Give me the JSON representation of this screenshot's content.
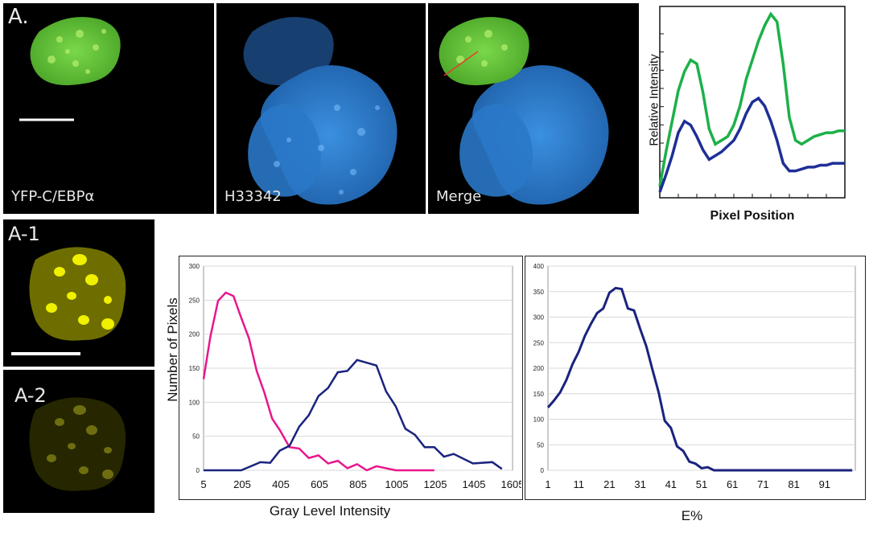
{
  "panel_a": {
    "label": "A.",
    "images": [
      {
        "caption": "YFP-C/EBPα",
        "channel": "YFP"
      },
      {
        "caption": "H33342",
        "channel": "Hoechst"
      },
      {
        "caption": "Merge",
        "channel": "Merge"
      }
    ]
  },
  "panel_a1": {
    "label": "A-1"
  },
  "panel_a2": {
    "label": "A-2"
  },
  "colors": {
    "yfp_green": "#6fd63a",
    "hoechst_blue": "#2f7fd0",
    "yellow": "#e6e600",
    "line_green": "#1db04a",
    "line_blue": "#1e2f96",
    "magenta": "#e8168c",
    "navy": "#1a237e"
  },
  "chart_data": [
    {
      "type": "line",
      "xlabel": "Pixel Position",
      "ylabel": "Relative Intensity",
      "x": [
        0,
        1,
        2,
        3,
        4,
        5,
        6,
        7,
        8,
        9,
        10,
        11,
        12,
        13,
        14,
        15,
        16,
        17,
        18,
        19,
        20,
        21,
        22,
        23,
        24,
        25,
        26,
        27,
        28,
        29,
        30
      ],
      "series": [
        {
          "name": "green",
          "values": [
            0.06,
            0.24,
            0.4,
            0.56,
            0.66,
            0.72,
            0.7,
            0.55,
            0.36,
            0.28,
            0.3,
            0.32,
            0.38,
            0.48,
            0.62,
            0.72,
            0.82,
            0.9,
            0.96,
            0.92,
            0.7,
            0.42,
            0.3,
            0.28,
            0.3,
            0.32,
            0.33,
            0.34,
            0.34,
            0.35,
            0.35
          ]
        },
        {
          "name": "blue",
          "values": [
            0.03,
            0.12,
            0.22,
            0.34,
            0.4,
            0.38,
            0.32,
            0.25,
            0.2,
            0.22,
            0.24,
            0.27,
            0.3,
            0.36,
            0.44,
            0.5,
            0.52,
            0.48,
            0.4,
            0.3,
            0.18,
            0.14,
            0.14,
            0.15,
            0.16,
            0.16,
            0.17,
            0.17,
            0.18,
            0.18,
            0.18
          ]
        }
      ]
    },
    {
      "type": "line",
      "xlabel": "Gray Level Intensity",
      "ylabel": "Number of Pixels",
      "xticks": [
        "5",
        "205",
        "405",
        "605",
        "805",
        "1005",
        "1205",
        "1405",
        "1605"
      ],
      "yticks": [
        "0",
        "50",
        "100",
        "150",
        "200",
        "250",
        "300"
      ],
      "xlim": [
        5,
        1605
      ],
      "ylim": [
        0,
        300
      ],
      "series": [
        {
          "name": "magenta",
          "x": [
            5,
            40,
            80,
            120,
            160,
            200,
            240,
            280,
            320,
            360,
            400,
            450,
            500,
            550,
            600,
            650,
            700,
            750,
            800,
            850,
            900,
            1000,
            1100,
            1200
          ],
          "values": [
            130,
            200,
            245,
            265,
            252,
            228,
            190,
            150,
            110,
            80,
            55,
            38,
            28,
            22,
            18,
            14,
            10,
            7,
            5,
            3,
            2,
            1,
            0,
            0
          ]
        },
        {
          "name": "navy",
          "x": [
            5,
            200,
            300,
            350,
            400,
            450,
            500,
            550,
            600,
            650,
            700,
            750,
            800,
            850,
            900,
            950,
            1000,
            1050,
            1100,
            1150,
            1200,
            1250,
            1300,
            1400,
            1500,
            1550
          ],
          "values": [
            0,
            3,
            8,
            15,
            25,
            40,
            60,
            85,
            105,
            125,
            140,
            150,
            158,
            162,
            150,
            120,
            90,
            65,
            48,
            38,
            30,
            24,
            20,
            14,
            8,
            6
          ]
        }
      ]
    },
    {
      "type": "line",
      "xlabel": "E%",
      "ylabel": "",
      "xticks": [
        "1",
        "11",
        "21",
        "31",
        "41",
        "51",
        "61",
        "71",
        "81",
        "91"
      ],
      "yticks": [
        "0",
        "50",
        "100",
        "150",
        "200",
        "250",
        "300",
        "350",
        "400"
      ],
      "xlim": [
        1,
        101
      ],
      "ylim": [
        0,
        400
      ],
      "series": [
        {
          "name": "navy",
          "x": [
            1,
            3,
            5,
            7,
            9,
            11,
            13,
            15,
            17,
            19,
            21,
            23,
            25,
            27,
            29,
            31,
            33,
            35,
            37,
            39,
            41,
            43,
            45,
            47,
            49,
            51,
            53,
            55,
            57,
            60,
            70,
            80,
            90,
            100
          ],
          "values": [
            120,
            140,
            150,
            180,
            205,
            235,
            260,
            290,
            305,
            320,
            345,
            360,
            352,
            320,
            310,
            280,
            240,
            200,
            150,
            100,
            80,
            50,
            35,
            20,
            10,
            7,
            3,
            2,
            0,
            0,
            0,
            0,
            0,
            0
          ]
        }
      ]
    }
  ]
}
